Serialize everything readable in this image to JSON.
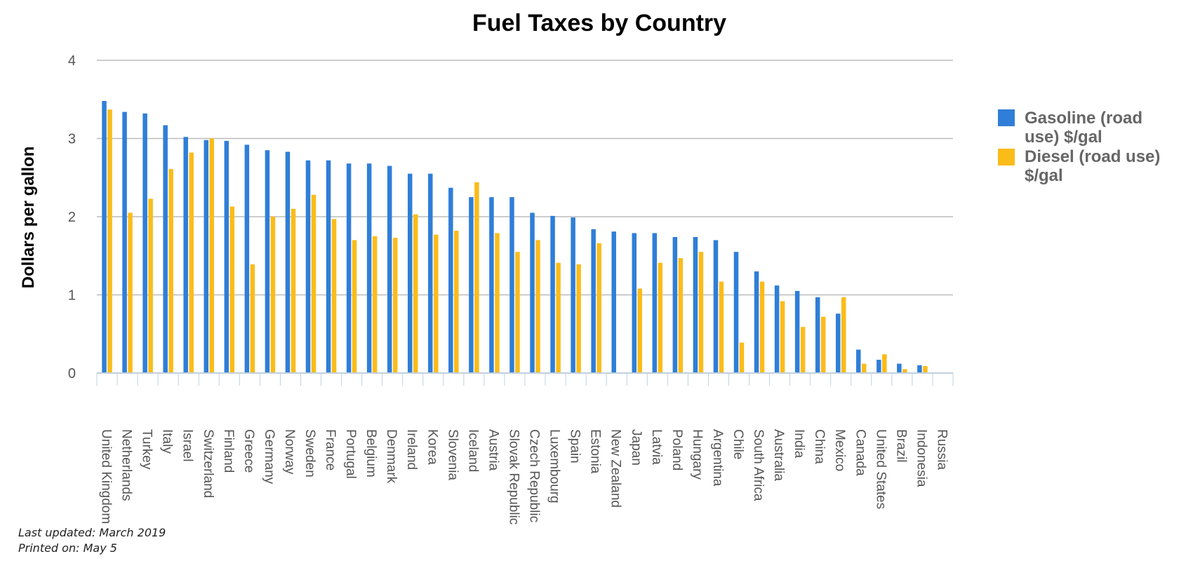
{
  "chart_data": {
    "type": "bar",
    "title": "Fuel Taxes by Country",
    "ylabel": "Dollars per gallon",
    "xlabel": "",
    "ylim": [
      0,
      4
    ],
    "yticks": [
      "0",
      "1",
      "2",
      "3",
      "4"
    ],
    "grid": true,
    "legend_position": "right",
    "categories": [
      "United Kingdom",
      "Netherlands",
      "Turkey",
      "Italy",
      "Israel",
      "Switzerland",
      "Finland",
      "Greece",
      "Germany",
      "Norway",
      "Sweden",
      "France",
      "Portugal",
      "Belgium",
      "Denmark",
      "Ireland",
      "Korea",
      "Slovenia",
      "Iceland",
      "Austria",
      "Slovak Republic",
      "Czech Republic",
      "Luxembourg",
      "Spain",
      "Estonia",
      "New Zealand",
      "Japan",
      "Latvia",
      "Poland",
      "Hungary",
      "Argentina",
      "Chile",
      "South Africa",
      "Australia",
      "India",
      "China",
      "Mexico",
      "Canada",
      "United States",
      "Brazil",
      "Indonesia",
      "Russia"
    ],
    "series": [
      {
        "name": "Gasoline (road use) $/gal",
        "color": "#2f7ed8",
        "legend_lines": [
          "Gasoline (road",
          "use) $/gal"
        ],
        "values": [
          3.48,
          3.34,
          3.32,
          3.17,
          3.02,
          2.98,
          2.97,
          2.92,
          2.85,
          2.83,
          2.72,
          2.72,
          2.68,
          2.68,
          2.65,
          2.55,
          2.55,
          2.37,
          2.25,
          2.25,
          2.25,
          2.05,
          2.01,
          1.99,
          1.84,
          1.81,
          1.79,
          1.79,
          1.74,
          1.74,
          1.7,
          1.55,
          1.3,
          1.12,
          1.05,
          0.97,
          0.76,
          0.3,
          0.17,
          0.12,
          0.1,
          0.0
        ]
      },
      {
        "name": "Diesel (road use) $/gal",
        "color": "#fbbc1a",
        "legend_lines": [
          "Diesel (road use)",
          "$/gal"
        ],
        "values": [
          3.37,
          2.05,
          2.23,
          2.61,
          2.82,
          3.0,
          2.13,
          1.39,
          2.0,
          2.1,
          2.28,
          1.97,
          1.7,
          1.75,
          1.73,
          2.03,
          1.77,
          1.82,
          2.44,
          1.79,
          1.55,
          1.7,
          1.41,
          1.39,
          1.66,
          0.0,
          1.08,
          1.41,
          1.47,
          1.55,
          1.17,
          0.39,
          1.17,
          0.92,
          0.59,
          0.72,
          0.97,
          0.12,
          0.24,
          0.05,
          0.09,
          0.0
        ]
      }
    ]
  },
  "footer": {
    "updated": "Last updated: March 2019",
    "printed": "Printed on: May 5"
  }
}
